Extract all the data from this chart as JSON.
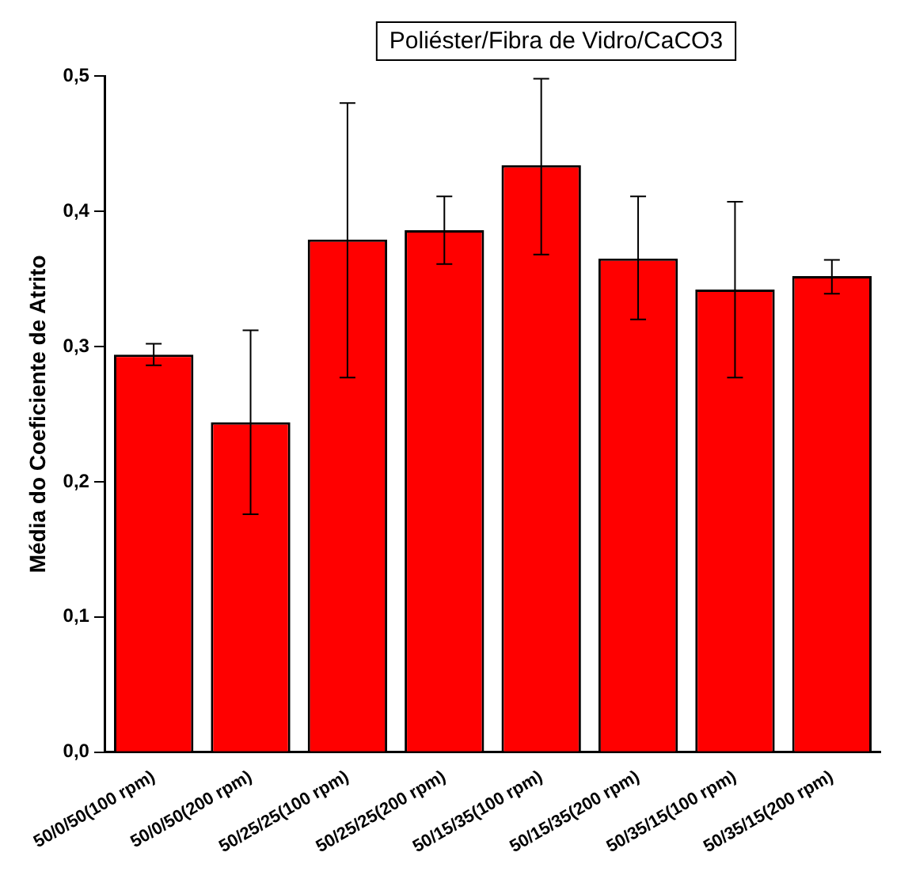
{
  "chart_data": {
    "type": "bar",
    "title": "Poliéster/Fibra de Vidro/CaCO3",
    "ylabel": "Média do Coeficiente de Atrito",
    "categories": [
      "50/0/50(100 rpm)",
      "50/0/50(200 rpm)",
      "50/25/25(100 rpm)",
      "50/25/25(200 rpm)",
      "50/15/35(100 rpm)",
      "50/15/35(200 rpm)",
      "50/35/15(100 rpm)",
      "50/35/15(200 rpm)"
    ],
    "values": [
      0.294,
      0.244,
      0.379,
      0.386,
      0.434,
      0.365,
      0.342,
      0.352
    ],
    "errors": [
      [
        0.286,
        0.302
      ],
      [
        0.176,
        0.312
      ],
      [
        0.277,
        0.48
      ],
      [
        0.361,
        0.411
      ],
      [
        0.368,
        0.498
      ],
      [
        0.32,
        0.411
      ],
      [
        0.277,
        0.407
      ],
      [
        0.339,
        0.364
      ]
    ],
    "color": "#ff0000",
    "ylim": [
      0,
      0.5
    ],
    "yticks": [
      {
        "value": 0,
        "label": "0,0"
      },
      {
        "value": 0.1,
        "label": "0,1"
      },
      {
        "value": 0.2,
        "label": "0,2"
      },
      {
        "value": 0.3,
        "label": "0,3"
      },
      {
        "value": 0.4,
        "label": "0,4"
      },
      {
        "value": 0.5,
        "label": "0,5"
      }
    ],
    "grid": false,
    "legend": false
  }
}
